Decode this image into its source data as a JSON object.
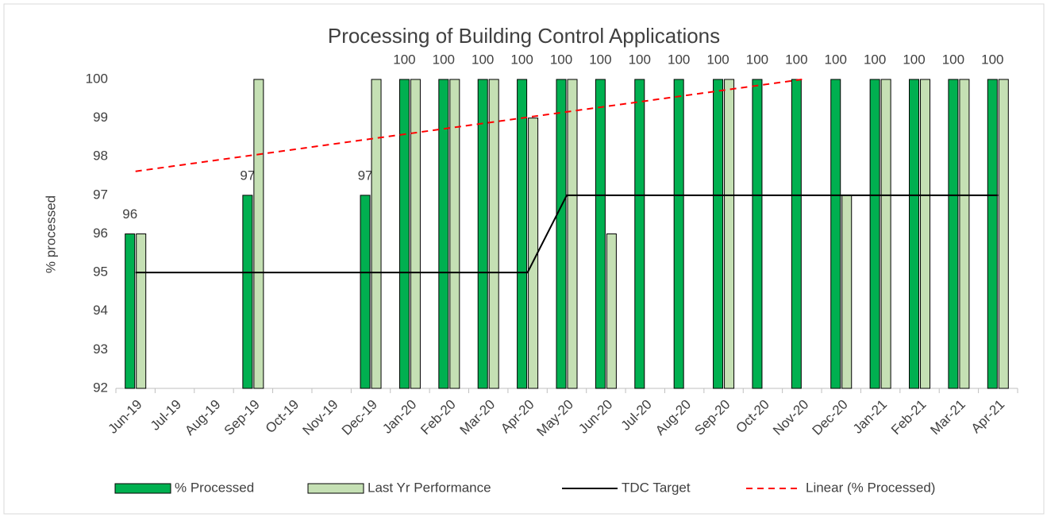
{
  "chart_data": {
    "type": "combo",
    "title": "Processing of Building Control Applications",
    "y_label": "% processed",
    "categories": [
      "Jun-19",
      "Jul-19",
      "Aug-19",
      "Sep-19",
      "Oct-19",
      "Nov-19",
      "Dec-19",
      "Jan-20",
      "Feb-20",
      "Mar-20",
      "Apr-20",
      "May-20",
      "Jun-20",
      "Jul-20",
      "Aug-20",
      "Sep-20",
      "Oct-20",
      "Nov-20",
      "Dec-20",
      "Jan-21",
      "Feb-21",
      "Mar-21",
      "Apr-21"
    ],
    "series": [
      {
        "name": "% Processed",
        "type": "bar",
        "color": "#00b050",
        "data_labels": true,
        "values": [
          96,
          null,
          null,
          97,
          null,
          null,
          97,
          100,
          100,
          100,
          100,
          100,
          100,
          100,
          100,
          100,
          100,
          100,
          100,
          100,
          100,
          100,
          100
        ]
      },
      {
        "name": "Last Yr Performance",
        "type": "bar",
        "color": "#c5e0b4",
        "values": [
          96,
          null,
          null,
          100,
          null,
          null,
          100,
          100,
          100,
          100,
          99,
          100,
          96,
          null,
          null,
          100,
          null,
          null,
          97,
          100,
          100,
          100,
          100
        ]
      },
      {
        "name": "TDC Target",
        "type": "line",
        "color": "#000000",
        "values": [
          95,
          95,
          95,
          95,
          95,
          95,
          95,
          95,
          95,
          95,
          95,
          97,
          97,
          97,
          97,
          97,
          97,
          97,
          97,
          97,
          97,
          97,
          97
        ]
      },
      {
        "name": "Linear (% Processed)",
        "type": "line",
        "color": "#ff0000",
        "dashed": true,
        "values": [
          97.62,
          97.76,
          97.9,
          98.04,
          98.18,
          98.32,
          98.46,
          98.6,
          98.74,
          98.88,
          99.02,
          99.16,
          99.3,
          99.44,
          99.58,
          99.72,
          99.86,
          100,
          null,
          null,
          null,
          null,
          null
        ]
      }
    ],
    "ylim": [
      92,
      100
    ],
    "yticks": [
      92,
      93,
      94,
      95,
      96,
      97,
      98,
      99,
      100
    ],
    "grid": false
  }
}
